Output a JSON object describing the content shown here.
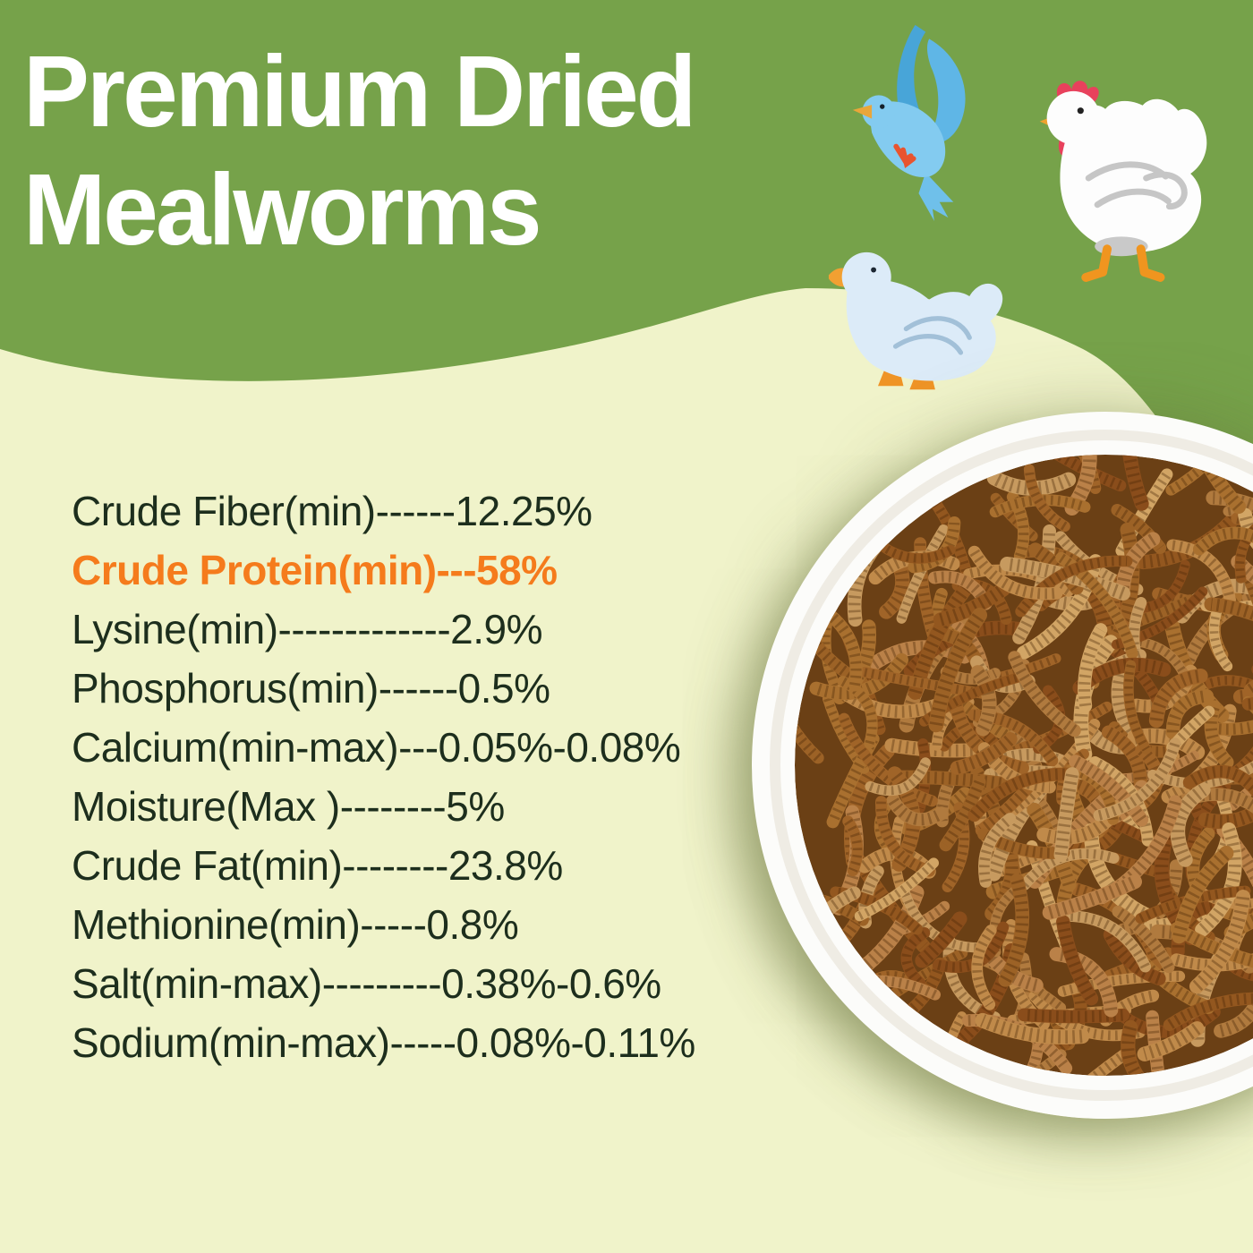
{
  "header": {
    "title_line1": "Premium Dried",
    "title_line2": "Mealworms"
  },
  "nutrition": {
    "items": [
      "Crude Fiber(min)------12.25%",
      "Crude Protein(min)---58%",
      "Lysine(min)-------------2.9%",
      "Phosphorus(min)------0.5%",
      "Calcium(min-max)---0.05%-0.08%",
      "Moisture(Max )--------5%",
      "Crude Fat(min)--------23.8%",
      "Methionine(min)-----0.8%",
      "Salt(min-max)---------0.38%-0.6%",
      "Sodium(min-max)-----0.08%-0.11%"
    ],
    "highlighted_item": "Crude Protein(min)---58%"
  },
  "illustrations": {
    "flying_bird": "blue-flying-bird",
    "hen": "white-hen-with-red-comb",
    "duck": "pale-blue-duck",
    "bowl": "round-white-bowl-of-dried-mealworms"
  },
  "colors": {
    "green_band": "#76a24a",
    "cream_background": "#f0f3ca",
    "accent_orange": "#f57b1c",
    "text_dark": "#1d2e1d",
    "title_white": "#ffffff",
    "plate_white": "#fcfcfa",
    "mealworm_brown": "#a96a2e"
  }
}
